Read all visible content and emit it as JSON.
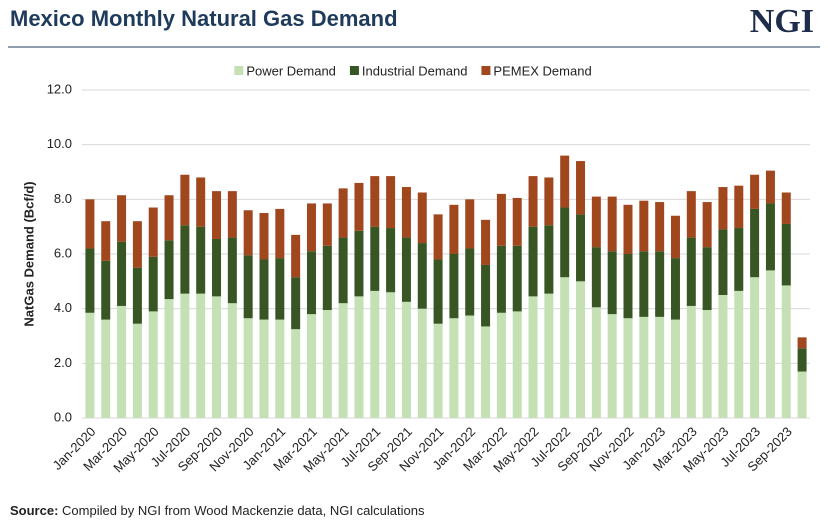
{
  "header": {
    "title": "Mexico Monthly Natural Gas Demand",
    "logo": "NGI"
  },
  "chart_data": {
    "type": "stacked-bar",
    "y_label": "NatGas Demand (Bcf/d)",
    "categories": [
      "Jan-2020",
      null,
      "Mar-2020",
      null,
      "May-2020",
      null,
      "Jul-2020",
      null,
      "Sep-2020",
      null,
      "Nov-2020",
      null,
      "Jan-2021",
      null,
      "Mar-2021",
      null,
      "May-2021",
      null,
      "Jul-2021",
      null,
      "Sep-2021",
      null,
      "Nov-2021",
      null,
      "Jan-2022",
      null,
      "Mar-2022",
      null,
      "May-2022",
      null,
      "Jul-2022",
      null,
      "Sep-2022",
      null,
      "Nov-2022",
      null,
      "Jan-2023",
      null,
      "Mar-2023",
      null,
      "May-2023",
      null,
      "Jul-2023",
      null,
      "Sep-2023",
      null
    ],
    "series": [
      {
        "name": "Power Demand",
        "color": "#c5e0b4",
        "values": [
          3.85,
          3.6,
          4.1,
          3.45,
          3.9,
          4.35,
          4.55,
          4.55,
          4.45,
          4.2,
          3.65,
          3.6,
          3.6,
          3.25,
          3.8,
          3.95,
          4.2,
          4.45,
          4.65,
          4.6,
          4.25,
          4.0,
          3.45,
          3.65,
          3.75,
          3.35,
          3.85,
          3.9,
          4.45,
          4.55,
          5.15,
          5.0,
          4.05,
          3.8,
          3.65,
          3.7,
          3.7,
          3.6,
          4.1,
          3.95,
          4.5,
          4.65,
          5.15,
          5.4,
          4.85,
          1.7
        ]
      },
      {
        "name": "Industrial Demand",
        "color": "#375623",
        "values": [
          2.35,
          2.15,
          2.35,
          2.05,
          2.0,
          2.15,
          2.5,
          2.45,
          2.1,
          2.4,
          2.3,
          2.2,
          2.25,
          1.9,
          2.3,
          2.35,
          2.4,
          2.4,
          2.35,
          2.35,
          2.35,
          2.4,
          2.35,
          2.35,
          2.45,
          2.25,
          2.45,
          2.4,
          2.55,
          2.5,
          2.55,
          2.45,
          2.2,
          2.3,
          2.35,
          2.4,
          2.4,
          2.25,
          2.5,
          2.3,
          2.4,
          2.3,
          2.5,
          2.45,
          2.25,
          0.85
        ]
      },
      {
        "name": "PEMEX Demand",
        "color": "#a0471e",
        "values": [
          1.8,
          1.45,
          1.7,
          1.7,
          1.8,
          1.65,
          1.85,
          1.8,
          1.75,
          1.7,
          1.65,
          1.7,
          1.8,
          1.55,
          1.75,
          1.55,
          1.8,
          1.75,
          1.85,
          1.9,
          1.85,
          1.85,
          1.65,
          1.8,
          1.8,
          1.65,
          1.9,
          1.75,
          1.85,
          1.75,
          1.9,
          1.95,
          1.85,
          2.0,
          1.8,
          1.85,
          1.8,
          1.55,
          1.7,
          1.65,
          1.55,
          1.55,
          1.25,
          1.2,
          1.15,
          0.4
        ]
      }
    ],
    "ylim": [
      0,
      12
    ],
    "yticks": [
      {
        "value": 0,
        "label": "0.0"
      },
      {
        "value": 2,
        "label": "2.0"
      },
      {
        "value": 4,
        "label": "4.0"
      },
      {
        "value": 6,
        "label": "6.0"
      },
      {
        "value": 8,
        "label": "8.0"
      },
      {
        "value": 10,
        "label": "10.0"
      },
      {
        "value": 12,
        "label": "12.0"
      }
    ],
    "grid": true,
    "legend": "top"
  },
  "footer": {
    "label": "Source:",
    "text": "Compiled by NGI from Wood Mackenzie data, NGI calculations"
  }
}
